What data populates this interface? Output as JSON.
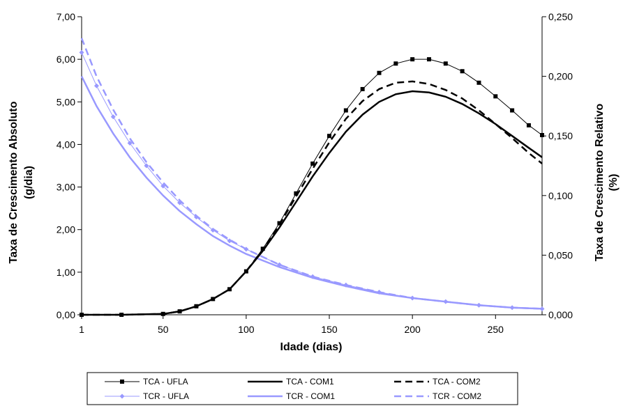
{
  "chart_data": {
    "type": "line",
    "xlabel": "Idade (dias)",
    "ylabel_left": [
      "Taxa de Crescimento Absoluto",
      "(g/dia)"
    ],
    "ylabel_right": [
      "Taxa de Crescimento Relativo",
      "(%)"
    ],
    "x_ticks": [
      "1",
      "50",
      "100",
      "150",
      "200",
      "250"
    ],
    "y_left_ticks": [
      "0,00",
      "1,00",
      "2,00",
      "3,00",
      "4,00",
      "5,00",
      "6,00",
      "7,00"
    ],
    "y_right_ticks": [
      "0,000",
      "0,050",
      "0,100",
      "0,150",
      "0,200",
      "0,250"
    ],
    "xlim": [
      1,
      278
    ],
    "ylim_left": [
      0,
      7
    ],
    "ylim_right": [
      0,
      0.25
    ],
    "grid": false,
    "legend_position": "bottom",
    "series": [
      {
        "name": "TCA - UFLA",
        "axis": "left",
        "color": "#000000",
        "style": "solid-square-markers",
        "x": [
          1,
          25,
          50,
          60,
          70,
          80,
          90,
          100,
          110,
          120,
          130,
          140,
          150,
          160,
          170,
          180,
          190,
          200,
          210,
          220,
          230,
          240,
          250,
          260,
          270,
          278
        ],
        "y": [
          0.0,
          0.0,
          0.02,
          0.08,
          0.2,
          0.37,
          0.6,
          1.02,
          1.55,
          2.15,
          2.85,
          3.55,
          4.2,
          4.8,
          5.3,
          5.68,
          5.9,
          6.0,
          6.0,
          5.9,
          5.72,
          5.45,
          5.13,
          4.8,
          4.45,
          4.22
        ]
      },
      {
        "name": "TCA - COM1",
        "axis": "left",
        "color": "#000000",
        "style": "thick-solid",
        "x": [
          1,
          25,
          50,
          60,
          70,
          80,
          90,
          100,
          110,
          120,
          130,
          140,
          150,
          160,
          170,
          180,
          190,
          200,
          210,
          220,
          230,
          240,
          250,
          260,
          270,
          278
        ],
        "y": [
          0.0,
          0.0,
          0.02,
          0.08,
          0.2,
          0.37,
          0.6,
          1.02,
          1.5,
          2.05,
          2.65,
          3.25,
          3.8,
          4.3,
          4.7,
          5.0,
          5.18,
          5.25,
          5.22,
          5.12,
          4.95,
          4.73,
          4.48,
          4.2,
          3.92,
          3.7
        ]
      },
      {
        "name": "TCA - COM2",
        "axis": "left",
        "color": "#000000",
        "style": "thick-dashed",
        "x": [
          1,
          25,
          50,
          60,
          70,
          80,
          90,
          100,
          110,
          120,
          130,
          140,
          150,
          160,
          170,
          180,
          190,
          200,
          210,
          220,
          230,
          240,
          250,
          260,
          270,
          278
        ],
        "y": [
          0.0,
          0.0,
          0.02,
          0.08,
          0.2,
          0.37,
          0.6,
          1.02,
          1.53,
          2.12,
          2.78,
          3.43,
          4.05,
          4.6,
          5.02,
          5.3,
          5.45,
          5.48,
          5.42,
          5.28,
          5.08,
          4.8,
          4.48,
          4.15,
          3.8,
          3.55
        ]
      },
      {
        "name": "TCR - UFLA",
        "axis": "right",
        "color": "#9999ff",
        "style": "thin-diamond-markers",
        "x": [
          1,
          10,
          20,
          30,
          40,
          50,
          60,
          70,
          80,
          90,
          100,
          120,
          140,
          160,
          180,
          200,
          220,
          240,
          260,
          278
        ],
        "y": [
          0.22,
          0.192,
          0.166,
          0.144,
          0.125,
          0.108,
          0.094,
          0.082,
          0.071,
          0.062,
          0.055,
          0.042,
          0.032,
          0.025,
          0.019,
          0.014,
          0.011,
          0.008,
          0.006,
          0.005
        ]
      },
      {
        "name": "TCR - COM1",
        "axis": "right",
        "color": "#9999ff",
        "style": "thick-solid",
        "x": [
          1,
          10,
          20,
          30,
          40,
          50,
          60,
          70,
          80,
          90,
          100,
          120,
          140,
          160,
          180,
          200,
          220,
          240,
          260,
          278
        ],
        "y": [
          0.2,
          0.175,
          0.152,
          0.132,
          0.115,
          0.1,
          0.087,
          0.076,
          0.066,
          0.058,
          0.051,
          0.04,
          0.031,
          0.024,
          0.018,
          0.014,
          0.011,
          0.008,
          0.006,
          0.005
        ]
      },
      {
        "name": "TCR - COM2",
        "axis": "right",
        "color": "#9999ff",
        "style": "thick-dashed",
        "x": [
          1,
          10,
          20,
          30,
          40,
          50,
          60,
          70,
          80,
          90,
          100,
          120,
          140,
          160,
          180,
          200,
          220,
          240,
          260,
          278
        ],
        "y": [
          0.232,
          0.2,
          0.172,
          0.148,
          0.128,
          0.111,
          0.096,
          0.083,
          0.072,
          0.063,
          0.055,
          0.042,
          0.032,
          0.025,
          0.019,
          0.014,
          0.011,
          0.008,
          0.006,
          0.005
        ]
      }
    ]
  }
}
